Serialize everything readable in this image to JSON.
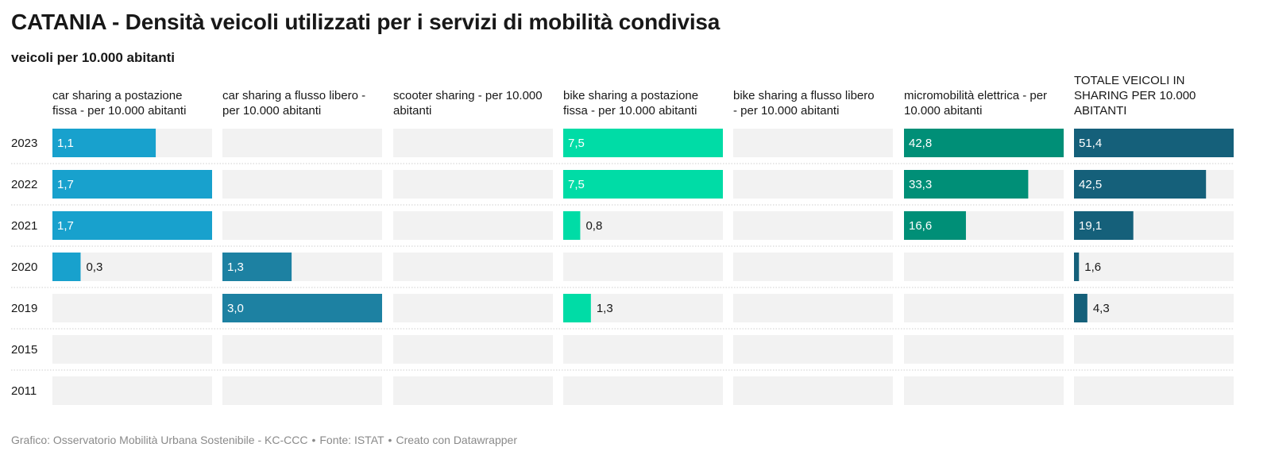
{
  "title": "CATANIA - Densità veicoli utilizzati per i servizi di mobilità condivisa",
  "subtitle": "veicoli per 10.000 abitanti",
  "footer": {
    "credit": "Grafico: Osservatorio Mobilità Urbana Sostenibile - KC-CCC",
    "source": "Fonte: ISTAT",
    "tool": "Creato con Datawrapper"
  },
  "chart_data": {
    "type": "bar",
    "orientation": "horizontal",
    "layout": "small-multiples",
    "categories": [
      "2023",
      "2022",
      "2021",
      "2020",
      "2019",
      "2015",
      "2011"
    ],
    "series": [
      {
        "name": "car sharing a postazione fissa - per 10.000 abitanti",
        "values": [
          1.1,
          1.7,
          1.7,
          0.3,
          null,
          null,
          null
        ],
        "labels": [
          "1,1",
          "1,7",
          "1,7",
          "0,3",
          "",
          "",
          ""
        ],
        "color": "#18a1cd",
        "max": 1.7
      },
      {
        "name": "car sharing a flusso libero - per 10.000 abitanti",
        "values": [
          null,
          null,
          null,
          1.3,
          3.0,
          null,
          null
        ],
        "labels": [
          "",
          "",
          "",
          "1,3",
          "3,0",
          "",
          ""
        ],
        "color": "#1d81a2",
        "max": 3.0
      },
      {
        "name": "scooter sharing - per 10.000 abitanti",
        "values": [
          null,
          null,
          null,
          null,
          null,
          null,
          null
        ],
        "labels": [
          "",
          "",
          "",
          "",
          "",
          "",
          ""
        ],
        "color": "#1d81a2",
        "max": 1
      },
      {
        "name": "bike sharing a postazione fissa - per 10.000 abitanti",
        "values": [
          7.5,
          7.5,
          0.8,
          null,
          1.3,
          null,
          null
        ],
        "labels": [
          "7,5",
          "7,5",
          "0,8",
          "",
          "1,3",
          "",
          ""
        ],
        "color": "#00dca6",
        "max": 7.5
      },
      {
        "name": "bike sharing a flusso libero - per 10.000 abitanti",
        "values": [
          null,
          null,
          null,
          null,
          null,
          null,
          null
        ],
        "labels": [
          "",
          "",
          "",
          "",
          "",
          "",
          ""
        ],
        "color": "#1d81a2",
        "max": 1
      },
      {
        "name": "micromobilità elettrica - per 10.000 abitanti",
        "values": [
          42.8,
          33.3,
          16.6,
          null,
          null,
          null,
          null
        ],
        "labels": [
          "42,8",
          "33,3",
          "16,6",
          "",
          "",
          "",
          ""
        ],
        "color": "#008f77",
        "max": 42.8
      },
      {
        "name": "TOTALE VEICOLI IN SHARING PER 10.000 ABITANTI",
        "values": [
          51.4,
          42.5,
          19.1,
          1.6,
          4.3,
          null,
          null
        ],
        "labels": [
          "51,4",
          "42,5",
          "19,1",
          "1,6",
          "4,3",
          "",
          ""
        ],
        "color": "#15607a",
        "max": 51.4
      }
    ],
    "grid": false,
    "legend": "none"
  }
}
